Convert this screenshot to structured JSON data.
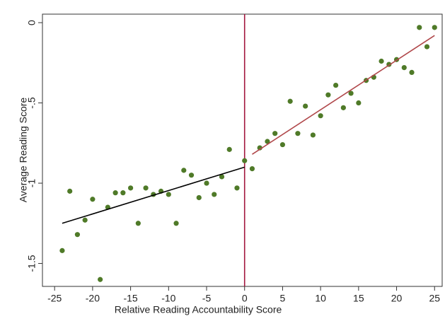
{
  "chart_data": {
    "type": "scatter",
    "x_label": "Relative Reading Accountability Score",
    "y_label": "Average Reading Score",
    "xlim": [
      -26.6,
      26
    ],
    "ylim": [
      -1.643,
      0.053
    ],
    "xticks": [
      -25,
      -20,
      -15,
      -10,
      -5,
      0,
      5,
      10,
      15,
      20,
      25
    ],
    "yticks": [
      0,
      {
        "value": -0.5,
        "label": "-.5"
      },
      -1,
      -1.5
    ],
    "vline": 0,
    "vline_color": "#a3173f",
    "series": [
      {
        "style": "markers",
        "color": "#4f7a28",
        "x": [
          -24,
          -23,
          -22,
          -21,
          -20,
          -19,
          -18,
          -17,
          -16,
          -15,
          -14,
          -13,
          -12,
          -11,
          -10,
          -9,
          -8,
          -7,
          -6,
          -5,
          -4,
          -3,
          -2,
          -1,
          0,
          1,
          2,
          3,
          4,
          5,
          6,
          7,
          8,
          9,
          10,
          11,
          12,
          13,
          14,
          15,
          16,
          17,
          18,
          19,
          20,
          21,
          22,
          23,
          24,
          25
        ],
        "values": [
          -1.42,
          -1.05,
          -1.32,
          -1.23,
          -1.1,
          -1.6,
          -1.15,
          -1.06,
          -1.06,
          -1.03,
          -1.25,
          -1.03,
          -1.07,
          -1.05,
          -1.07,
          -1.25,
          -0.92,
          -0.95,
          -1.09,
          -1.0,
          -1.07,
          -0.96,
          -0.79,
          -1.03,
          -0.86,
          -0.91,
          -0.78,
          -0.74,
          -0.69,
          -0.76,
          -0.49,
          -0.69,
          -0.52,
          -0.7,
          -0.58,
          -0.45,
          -0.39,
          -0.53,
          -0.44,
          -0.5,
          -0.36,
          -0.34,
          -0.24,
          -0.26,
          -0.23,
          -0.28,
          -0.31,
          -0.03,
          -0.15,
          -0.03
        ]
      },
      {
        "style": "line",
        "color": "#000000",
        "x": [
          -24,
          0
        ],
        "values": [
          -1.25,
          -0.9
        ]
      },
      {
        "style": "line",
        "color": "#b0474a",
        "x": [
          1,
          25
        ],
        "values": [
          -0.82,
          -0.08
        ]
      }
    ]
  }
}
